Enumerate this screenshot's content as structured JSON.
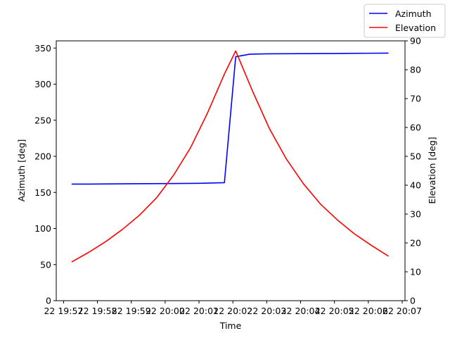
{
  "chart_data": {
    "type": "line",
    "xlabel": "Time",
    "ylabel_left": "Azimuth [deg]",
    "ylabel_right": "Elevation [deg]",
    "x_ticks": [
      "22 19:57",
      "22 19:58",
      "22 19:59",
      "22 20:00",
      "22 20:01",
      "22 20:02",
      "22 20:03",
      "22 20:04",
      "22 20:05",
      "22 20:06",
      "22 20:07"
    ],
    "xlim": [
      "19:56:47",
      "20:07:05"
    ],
    "ylim_left": [
      0,
      360
    ],
    "ylim_right": [
      0,
      90
    ],
    "y_ticks_left": [
      0,
      50,
      100,
      150,
      200,
      250,
      300,
      350
    ],
    "y_ticks_right": [
      0,
      10,
      20,
      30,
      40,
      50,
      60,
      70,
      80,
      90
    ],
    "legend_position": "top-right",
    "series": [
      {
        "name": "Azimuth",
        "axis": "left",
        "color": "#0000ff",
        "x": [
          "19:57:15",
          "19:58:00",
          "19:59:00",
          "20:00:00",
          "20:01:00",
          "20:01:45",
          "20:02:05",
          "20:02:30",
          "20:03:00",
          "20:04:00",
          "20:05:00",
          "20:06:00",
          "20:06:35"
        ],
        "y": [
          161.5,
          161.6,
          162.0,
          162.3,
          162.6,
          163.5,
          338,
          341.5,
          342,
          342.3,
          342.5,
          342.8,
          343
        ]
      },
      {
        "name": "Elevation",
        "axis": "right",
        "color": "#ff0000",
        "x": [
          "19:57:15",
          "19:57:45",
          "19:58:15",
          "19:58:45",
          "19:59:15",
          "19:59:45",
          "20:00:15",
          "20:00:45",
          "20:01:15",
          "20:01:45",
          "20:02:05",
          "20:02:35",
          "20:03:05",
          "20:03:35",
          "20:04:05",
          "20:04:35",
          "20:05:05",
          "20:05:35",
          "20:06:05",
          "20:06:35"
        ],
        "y": [
          13.5,
          16.8,
          20.5,
          24.8,
          29.7,
          35.7,
          43.5,
          53.0,
          65.0,
          78.5,
          86.5,
          72.5,
          59.5,
          49.0,
          40.5,
          33.5,
          28.0,
          23.2,
          19.2,
          15.5
        ]
      }
    ]
  }
}
